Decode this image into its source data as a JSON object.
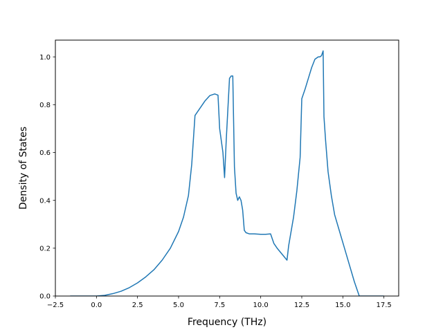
{
  "chart_data": {
    "type": "line",
    "title": "",
    "xlabel": "Frequency (THz)",
    "ylabel": "Density of States",
    "xlim": [
      -2.5,
      18.4
    ],
    "ylim": [
      0.0,
      1.07
    ],
    "xticks": [
      -2.5,
      0.0,
      2.5,
      5.0,
      7.5,
      10.0,
      12.5,
      15.0,
      17.5
    ],
    "xtick_labels": [
      "−2.5",
      "0.0",
      "2.5",
      "5.0",
      "7.5",
      "10.0",
      "12.5",
      "15.0",
      "17.5"
    ],
    "yticks": [
      0.0,
      0.2,
      0.4,
      0.6,
      0.8,
      1.0
    ],
    "ytick_labels": [
      "0.0",
      "0.2",
      "0.4",
      "0.6",
      "0.8",
      "1.0"
    ],
    "grid": false,
    "legend": "none",
    "series": [
      {
        "color": "#1f77b4",
        "x": [
          -1.6,
          -1.0,
          -0.5,
          0.0,
          0.5,
          1.0,
          1.5,
          2.0,
          2.5,
          3.0,
          3.5,
          4.0,
          4.5,
          5.0,
          5.3,
          5.6,
          5.8,
          6.0,
          6.3,
          6.6,
          6.9,
          7.2,
          7.4,
          7.5,
          7.7,
          7.8,
          7.9,
          8.1,
          8.2,
          8.3,
          8.4,
          8.5,
          8.6,
          8.7,
          8.8,
          8.9,
          9.0,
          9.1,
          9.3,
          9.6,
          10.0,
          10.3,
          10.6,
          10.8,
          11.0,
          11.3,
          11.6,
          11.7,
          11.8,
          12.0,
          12.2,
          12.4,
          12.5,
          12.7,
          12.9,
          13.1,
          13.3,
          13.5,
          13.6,
          13.7,
          13.8,
          13.85,
          13.95,
          14.1,
          14.3,
          14.5,
          14.8,
          15.1,
          15.4,
          15.7,
          15.9,
          16.0,
          16.3,
          16.8,
          17.5
        ],
        "values": [
          0.0,
          0.0,
          0.0,
          0.0,
          0.003,
          0.01,
          0.02,
          0.035,
          0.055,
          0.08,
          0.11,
          0.15,
          0.2,
          0.27,
          0.33,
          0.42,
          0.55,
          0.755,
          0.785,
          0.815,
          0.838,
          0.845,
          0.84,
          0.7,
          0.6,
          0.495,
          0.65,
          0.91,
          0.92,
          0.92,
          0.54,
          0.43,
          0.4,
          0.415,
          0.4,
          0.36,
          0.275,
          0.265,
          0.26,
          0.26,
          0.258,
          0.258,
          0.26,
          0.22,
          0.2,
          0.175,
          0.15,
          0.21,
          0.25,
          0.33,
          0.44,
          0.58,
          0.825,
          0.865,
          0.91,
          0.955,
          0.99,
          1.0,
          1.0,
          1.005,
          1.025,
          0.75,
          0.65,
          0.52,
          0.42,
          0.34,
          0.27,
          0.2,
          0.13,
          0.06,
          0.02,
          0.0,
          0.0,
          0.0,
          0.0
        ]
      }
    ]
  }
}
